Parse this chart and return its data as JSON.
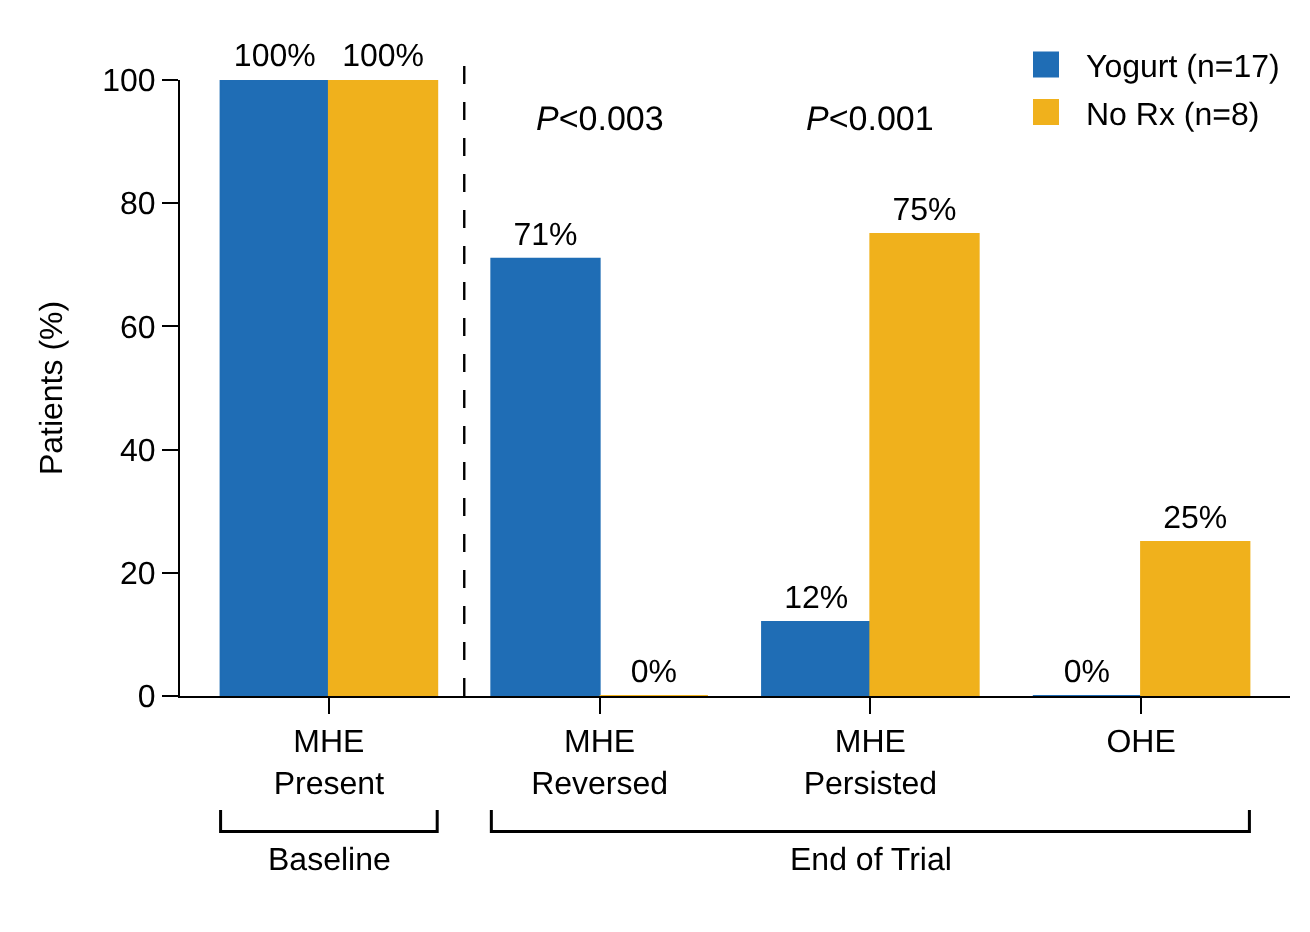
{
  "chart_data": {
    "type": "bar",
    "categories": [
      "MHE\nPresent",
      "MHE\nReversed",
      "MHE\nPersisted",
      "OHE"
    ],
    "series": [
      {
        "name": "Yogurt (n=17)",
        "color": "#1f6db5",
        "values": [
          100,
          71,
          12,
          0
        ],
        "value_labels": [
          "100%",
          "71%",
          "12%",
          "0%"
        ]
      },
      {
        "name": "No Rx (n=8)",
        "color": "#f0b11c",
        "values": [
          100,
          0,
          75,
          25
        ],
        "value_labels": [
          "100%",
          "0%",
          "75%",
          "25%"
        ]
      }
    ],
    "ylabel": "Patients (%)",
    "ylim": [
      0,
      100
    ],
    "yticks": [
      0,
      20,
      40,
      60,
      80,
      100
    ],
    "annotations": [
      "P<0.003",
      "P<0.001",
      "Baseline",
      "End of Trial"
    ],
    "legend": "top right"
  }
}
